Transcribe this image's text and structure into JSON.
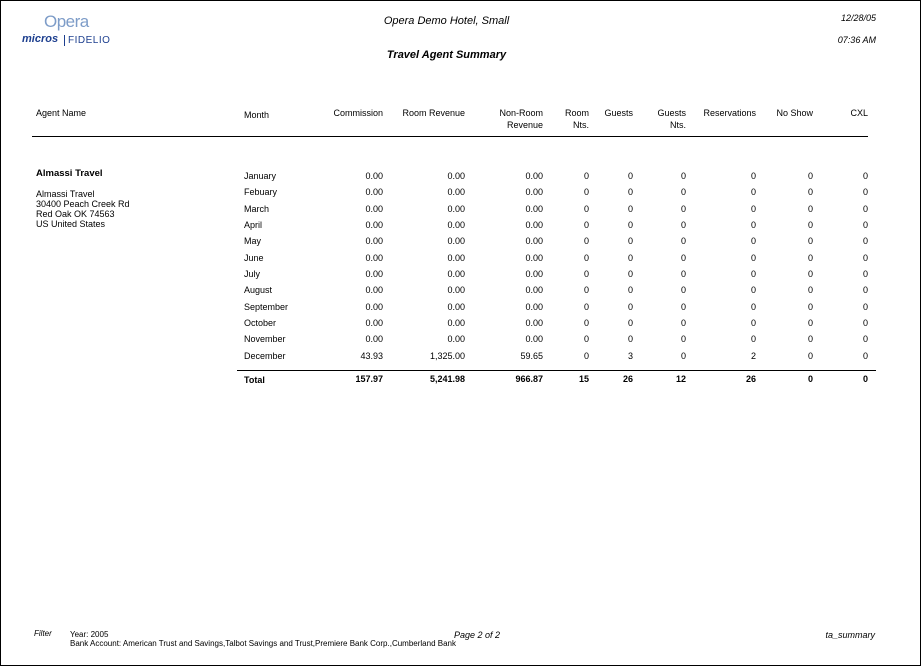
{
  "header": {
    "logo_top": "Opera",
    "logo_left": "micros",
    "logo_right": "FIDELIO",
    "hotel_name": "Opera Demo Hotel, Small",
    "report_title": "Travel Agent Summary",
    "date": "12/28/05",
    "time": "07:36 AM"
  },
  "columns": [
    "Agent Name",
    "Month",
    "Commission",
    "Room Revenue",
    "Non-Room\nRevenue",
    "Room\nNts.",
    "Guests",
    "Guests\nNts.",
    "Reservations",
    "No Show",
    "CXL"
  ],
  "agent": {
    "name": "Almassi Travel",
    "address": [
      "Almassi Travel",
      "30400 Peach Creek Rd",
      "Red Oak OK 74563",
      "US United States"
    ]
  },
  "rows": [
    [
      "January",
      "0.00",
      "0.00",
      "0.00",
      "0",
      "0",
      "0",
      "0",
      "0",
      "0"
    ],
    [
      "Febuary",
      "0.00",
      "0.00",
      "0.00",
      "0",
      "0",
      "0",
      "0",
      "0",
      "0"
    ],
    [
      "March",
      "0.00",
      "0.00",
      "0.00",
      "0",
      "0",
      "0",
      "0",
      "0",
      "0"
    ],
    [
      "April",
      "0.00",
      "0.00",
      "0.00",
      "0",
      "0",
      "0",
      "0",
      "0",
      "0"
    ],
    [
      "May",
      "0.00",
      "0.00",
      "0.00",
      "0",
      "0",
      "0",
      "0",
      "0",
      "0"
    ],
    [
      "June",
      "0.00",
      "0.00",
      "0.00",
      "0",
      "0",
      "0",
      "0",
      "0",
      "0"
    ],
    [
      "July",
      "0.00",
      "0.00",
      "0.00",
      "0",
      "0",
      "0",
      "0",
      "0",
      "0"
    ],
    [
      "August",
      "0.00",
      "0.00",
      "0.00",
      "0",
      "0",
      "0",
      "0",
      "0",
      "0"
    ],
    [
      "September",
      "0.00",
      "0.00",
      "0.00",
      "0",
      "0",
      "0",
      "0",
      "0",
      "0"
    ],
    [
      "October",
      "0.00",
      "0.00",
      "0.00",
      "0",
      "0",
      "0",
      "0",
      "0",
      "0"
    ],
    [
      "November",
      "0.00",
      "0.00",
      "0.00",
      "0",
      "0",
      "0",
      "0",
      "0",
      "0"
    ],
    [
      "December",
      "43.93",
      "1,325.00",
      "59.65",
      "0",
      "3",
      "0",
      "2",
      "0",
      "0"
    ]
  ],
  "total": [
    "Total",
    "157.97",
    "5,241.98",
    "966.87",
    "15",
    "26",
    "12",
    "26",
    "0",
    "0"
  ],
  "footer": {
    "filter_label": "Filter",
    "filter_year": "Year: 2005",
    "filter_bank": "Bank Account: American Trust and Savings,Talbot Savings and Trust,Premiere Bank Corp.,Cumberland Bank",
    "page": "Page 2 of 2",
    "report_code": "ta_summary"
  }
}
